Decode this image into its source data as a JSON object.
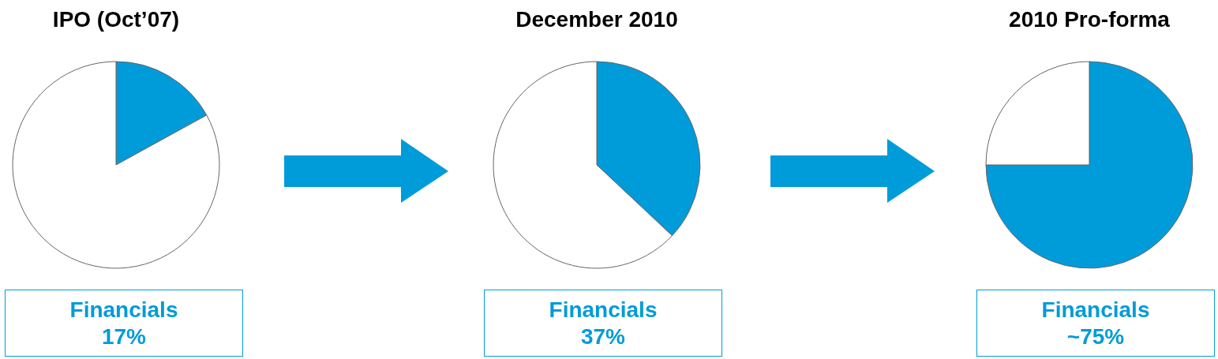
{
  "chart_data": [
    {
      "type": "pie",
      "title": "IPO (Oct’07)",
      "categories": [
        null,
        null
      ],
      "values": [
        17,
        83
      ],
      "colors": [
        "#009bd9",
        "#ffffff"
      ],
      "annotations": [
        "Financials",
        "17%"
      ]
    },
    {
      "type": "pie",
      "title": "December 2010",
      "categories": [
        null,
        null
      ],
      "values": [
        37,
        63
      ],
      "colors": [
        "#009bd9",
        "#ffffff"
      ],
      "annotations": [
        "Financials",
        "37%"
      ]
    },
    {
      "type": "pie",
      "title": "2010 Pro-forma",
      "categories": [
        null,
        null
      ],
      "values": [
        75,
        25
      ],
      "colors": [
        "#009bd9",
        "#ffffff"
      ],
      "annotations": [
        "Financials",
        "~75%"
      ]
    }
  ]
}
